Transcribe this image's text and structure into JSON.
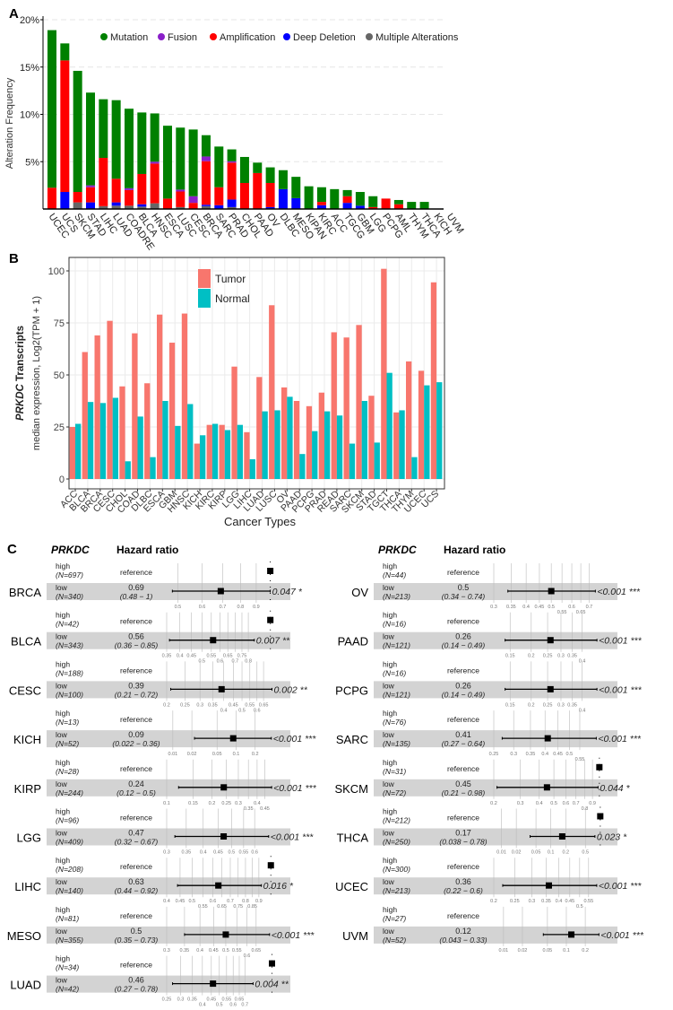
{
  "colors": {
    "mutation": "#008000",
    "fusion": "#8a1fc9",
    "amplification": "#ff0000",
    "deep_deletion": "#0000ff",
    "multiple": "#666666",
    "tumor": "#f8766d",
    "normal": "#00bfc4",
    "band": "#d3d3d3"
  },
  "chart_data": [
    {
      "panel": "A",
      "type": "bar",
      "stacked": true,
      "ylabel": "Alteration Frequency",
      "yticks": [
        "5%",
        "10%",
        "15%",
        "20%"
      ],
      "ylim": [
        0,
        20
      ],
      "unit": "%",
      "grid": true,
      "legend_placement": "top",
      "categories": [
        "UCEC",
        "UCS",
        "SKCM",
        "STAD",
        "LIHC",
        "LUAD",
        "COADRE",
        "BLCA",
        "HNSC",
        "ESCA",
        "LUSC",
        "CESC",
        "BRCA",
        "SARC",
        "PRAD",
        "CHOL",
        "PAAD",
        "OV",
        "DLBC",
        "MESO",
        "KIPAN",
        "KIRC",
        "ACC",
        "TGCG",
        "GBM",
        "LGG",
        "PCPG",
        "AML",
        "THYM",
        "THCA",
        "KICH",
        "UVM"
      ],
      "series": [
        {
          "name": "Multiple Alterations",
          "key": "multiple",
          "values": [
            0,
            0,
            0.7,
            0,
            0.3,
            0.35,
            0.35,
            0.25,
            0.6,
            0,
            0.2,
            0,
            0.3,
            0,
            0.2,
            0,
            0,
            0,
            0,
            0,
            0,
            0,
            0,
            0,
            0,
            0,
            0,
            0,
            0,
            0,
            0,
            0
          ]
        },
        {
          "name": "Deep Deletion",
          "key": "deep_deletion",
          "values": [
            0,
            1.8,
            0,
            0.7,
            0,
            0.35,
            0,
            0.25,
            0,
            0,
            0,
            0,
            0.15,
            0.4,
            0.8,
            0,
            0,
            0.2,
            2.1,
            1.15,
            0,
            0.4,
            0,
            0.65,
            0.35,
            0,
            0,
            0,
            0,
            0,
            0,
            0
          ]
        },
        {
          "name": "Amplification",
          "key": "amplification",
          "values": [
            2.25,
            13.9,
            1.1,
            1.6,
            5.1,
            2.5,
            1.65,
            3.2,
            4.2,
            1.1,
            1.65,
            0.65,
            4.6,
            1.9,
            3.9,
            2.75,
            3.8,
            2.55,
            0,
            0,
            0,
            0.35,
            0,
            0.7,
            0,
            0.2,
            1.1,
            0.5,
            0,
            0,
            0,
            0
          ]
        },
        {
          "name": "Fusion",
          "key": "fusion",
          "values": [
            0,
            0,
            0,
            0.2,
            0,
            0,
            0.2,
            0,
            0.2,
            0,
            0.2,
            0.7,
            0.5,
            0,
            0.15,
            0,
            0,
            0,
            0,
            0,
            0,
            0,
            0,
            0,
            0,
            0,
            0,
            0,
            0,
            0,
            0,
            0
          ]
        },
        {
          "name": "Mutation",
          "key": "mutation",
          "values": [
            16.65,
            1.8,
            12.8,
            9.8,
            6.2,
            8.3,
            8.4,
            6.5,
            5.1,
            7.7,
            6.55,
            7.05,
            2.25,
            4.3,
            1.25,
            2.75,
            1.1,
            1.65,
            2.0,
            2.25,
            2.4,
            1.55,
            2.1,
            0.65,
            1.45,
            1.15,
            0,
            0.45,
            0.75,
            0.75,
            0,
            0
          ]
        }
      ],
      "legend_order": [
        "Mutation",
        "Fusion",
        "Amplification",
        "Deep Deletion",
        "Multiple Alterations"
      ]
    },
    {
      "panel": "B",
      "type": "bar",
      "grouped": true,
      "ylabel_gene": "PRKDC",
      "ylabel_suffix": " Transcripts",
      "ylabel2": "median expression, Log2(TPM + 1)",
      "xlabel": "Cancer Types",
      "ylim": [
        0,
        105
      ],
      "yticks": [
        0,
        25,
        50,
        75,
        100
      ],
      "grid": true,
      "legend_placement": "top-center",
      "categories": [
        "ACC",
        "BLCA",
        "BRCA",
        "CESC",
        "CHOL",
        "COAD",
        "DLBC",
        "ESCA",
        "GBM",
        "HNSC",
        "KICH",
        "KIRC",
        "KIRP",
        "LGG",
        "LIHC",
        "LUAD",
        "LUSC",
        "OV",
        "PAAD",
        "PCPG",
        "PRAD",
        "READ",
        "SARC",
        "SKCM",
        "STAD",
        "TGCT",
        "THCA",
        "THYM",
        "UCEC",
        "UCS"
      ],
      "series": [
        {
          "name": "Tumor",
          "values": [
            25,
            61,
            69,
            76,
            44.5,
            70,
            46,
            79,
            65.5,
            79.5,
            17,
            26,
            26,
            54,
            22.5,
            49,
            83.5,
            44,
            37.5,
            35,
            41.5,
            70.5,
            68,
            74,
            40,
            101,
            32,
            56.5,
            52,
            94.5
          ]
        },
        {
          "name": "Normal",
          "values": [
            26.5,
            37,
            36.5,
            39,
            8.5,
            30,
            10.5,
            37.5,
            25.5,
            36,
            21,
            26.5,
            23.5,
            26,
            9.5,
            32.5,
            33,
            39.5,
            12,
            23,
            32.5,
            30.5,
            17,
            37.5,
            17.5,
            51,
            33,
            10.5,
            45,
            46.5
          ]
        }
      ]
    },
    {
      "panel": "C",
      "type": "forest",
      "scale": "log",
      "header_gene": "PRKDC",
      "header_hr": "Hazard ratio",
      "high_label": "high",
      "low_label": "low",
      "reference_label": "reference",
      "columns": [
        [
          {
            "cancer": "BRCA",
            "n_high": "(N=697)",
            "n_low": "(N=340)",
            "hr": 0.69,
            "hr_text": "0.69",
            "ci": [
              0.48,
              1
            ],
            "ci_text": "(0.48 − 1)",
            "p": "0.047 *",
            "xlim": [
              0.46,
              1.03
            ],
            "ticks": [
              0.5,
              0.6,
              0.7,
              0.8,
              0.9
            ]
          },
          {
            "cancer": "BLCA",
            "n_high": "(N=42)",
            "n_low": "(N=343)",
            "hr": 0.56,
            "hr_text": "0.56",
            "ci": [
              0.36,
              0.85
            ],
            "ci_text": "(0.36 − 0.85)",
            "p": "0.007 **",
            "xlim": [
              0.35,
              1.04
            ],
            "ticks": [
              0.35,
              0.4,
              0.45,
              0.5,
              0.55,
              0.6,
              0.65,
              0.7,
              0.75,
              0.8
            ]
          },
          {
            "cancer": "CESC",
            "n_high": "(N=188)",
            "n_low": "(N=100)",
            "hr": 0.39,
            "hr_text": "0.39",
            "ci": [
              0.21,
              0.72
            ],
            "ci_text": "(0.21 − 0.72)",
            "p": "0.002 **",
            "xlim": [
              0.2,
              0.74
            ],
            "ticks": [
              0.2,
              0.25,
              0.3,
              0.35,
              0.4,
              0.45,
              0.5,
              0.55,
              0.6,
              0.65
            ]
          },
          {
            "cancer": "KICH",
            "n_high": "(N=13)",
            "n_low": "(N=52)",
            "hr": 0.09,
            "hr_text": "0.09",
            "ci": [
              0.022,
              0.36
            ],
            "ci_text": "(0.022 − 0.36)",
            "p": "<0.001 ***",
            "xlim": [
              0.008,
              0.4
            ],
            "ticks": [
              0.01,
              0.02,
              0.05,
              0.1,
              0.2
            ]
          },
          {
            "cancer": "KIRP",
            "n_high": "(N=28)",
            "n_low": "(N=244)",
            "hr": 0.24,
            "hr_text": "0.24",
            "ci": [
              0.12,
              0.5
            ],
            "ci_text": "(0.12 − 0.5)",
            "p": "<0.001 ***",
            "xlim": [
              0.1,
              0.52
            ],
            "ticks": [
              0.1,
              0.15,
              0.2,
              0.25,
              0.3,
              0.35,
              0.4,
              0.45
            ]
          },
          {
            "cancer": "LGG",
            "n_high": "(N=96)",
            "n_low": "(N=409)",
            "hr": 0.47,
            "hr_text": "0.47",
            "ci": [
              0.32,
              0.67
            ],
            "ci_text": "(0.32 − 0.67)",
            "p": "<0.001 ***",
            "xlim": [
              0.3,
              0.7
            ],
            "ticks": [
              0.3,
              0.35,
              0.4,
              0.45,
              0.5,
              0.55,
              0.6
            ]
          },
          {
            "cancer": "LIHC",
            "n_high": "(N=208)",
            "n_low": "(N=140)",
            "hr": 0.63,
            "hr_text": "0.63",
            "ci": [
              0.44,
              0.92
            ],
            "ci_text": "(0.44 − 0.92)",
            "p": "0.016 *",
            "xlim": [
              0.4,
              1.03
            ],
            "ticks": [
              0.4,
              0.45,
              0.5,
              0.55,
              0.6,
              0.65,
              0.7,
              0.75,
              0.8,
              0.85,
              0.9
            ]
          },
          {
            "cancer": "MESO",
            "n_high": "(N=81)",
            "n_low": "(N=355)",
            "hr": 0.5,
            "hr_text": "0.5",
            "ci": [
              0.35,
              0.73
            ],
            "ci_text": "(0.35 − 0.73)",
            "p": "<0.001 ***",
            "xlim": [
              0.3,
              0.76
            ],
            "ticks": [
              0.3,
              0.35,
              0.4,
              0.45,
              0.5,
              0.55,
              0.6,
              0.65
            ]
          },
          {
            "cancer": "LUAD",
            "n_high": "(N=34)",
            "n_low": "(N=42)",
            "hr": 0.46,
            "hr_text": "0.46",
            "ci": [
              0.27,
              0.78
            ],
            "ci_text": "(0.27 − 0.78)",
            "p": "0.004 **",
            "xlim": [
              0.25,
              1.03
            ],
            "ticks": [
              0.25,
              0.3,
              0.35,
              0.4,
              0.45,
              0.5,
              0.55,
              0.6,
              0.65,
              0.7
            ]
          }
        ],
        [
          {
            "cancer": "OV",
            "n_high": "(N=44)",
            "n_low": "(N=213)",
            "hr": 0.5,
            "hr_text": "0.5",
            "ci": [
              0.34,
              0.74
            ],
            "ci_text": "(0.34 − 0.74)",
            "p": "<0.001 ***",
            "xlim": [
              0.3,
              0.78
            ],
            "ticks": [
              0.3,
              0.35,
              0.4,
              0.45,
              0.5,
              0.55,
              0.6,
              0.65,
              0.7
            ]
          },
          {
            "cancer": "PAAD",
            "n_high": "(N=16)",
            "n_low": "(N=121)",
            "hr": 0.26,
            "hr_text": "0.26",
            "ci": [
              0.14,
              0.49
            ],
            "ci_text": "(0.14 − 0.49)",
            "p": "<0.001 ***",
            "xlim": [
              0.12,
              0.52
            ],
            "ticks": [
              0.15,
              0.2,
              0.25,
              0.3,
              0.35,
              0.4
            ]
          },
          {
            "cancer": "PCPG",
            "n_high": "(N=16)",
            "n_low": "(N=121)",
            "hr": 0.26,
            "hr_text": "0.26",
            "ci": [
              0.14,
              0.49
            ],
            "ci_text": "(0.14 − 0.49)",
            "p": "<0.001 ***",
            "xlim": [
              0.12,
              0.52
            ],
            "ticks": [
              0.15,
              0.2,
              0.25,
              0.3,
              0.35,
              0.4
            ]
          },
          {
            "cancer": "SARC",
            "n_high": "(N=76)",
            "n_low": "(N=135)",
            "hr": 0.41,
            "hr_text": "0.41",
            "ci": [
              0.27,
              0.64
            ],
            "ci_text": "(0.27 − 0.64)",
            "p": "<0.001 ***",
            "xlim": [
              0.25,
              0.67
            ],
            "ticks": [
              0.25,
              0.3,
              0.35,
              0.4,
              0.45,
              0.5,
              0.55
            ]
          },
          {
            "cancer": "SKCM",
            "n_high": "(N=31)",
            "n_low": "(N=72)",
            "hr": 0.45,
            "hr_text": "0.45",
            "ci": [
              0.21,
              0.98
            ],
            "ci_text": "(0.21 − 0.98)",
            "p": "0.044 *",
            "xlim": [
              0.2,
              1.03
            ],
            "ticks": [
              0.2,
              0.3,
              0.4,
              0.5,
              0.6,
              0.7,
              0.8,
              0.9
            ]
          },
          {
            "cancer": "THCA",
            "n_high": "(N=212)",
            "n_low": "(N=250)",
            "hr": 0.17,
            "hr_text": "0.17",
            "ci": [
              0.038,
              0.78
            ],
            "ci_text": "(0.038 − 0.78)",
            "p": "0.023 *",
            "xlim": [
              0.007,
              1.05
            ],
            "ticks": [
              0.01,
              0.02,
              0.05,
              0.1,
              0.2,
              0.5
            ]
          },
          {
            "cancer": "UCEC",
            "n_high": "(N=300)",
            "n_low": "(N=213)",
            "hr": 0.36,
            "hr_text": "0.36",
            "ci": [
              0.22,
              0.6
            ],
            "ci_text": "(0.22 − 0.6)",
            "p": "<0.001 ***",
            "xlim": [
              0.2,
              0.63
            ],
            "ticks": [
              0.2,
              0.25,
              0.3,
              0.35,
              0.4,
              0.45,
              0.5,
              0.55
            ]
          },
          {
            "cancer": "UVM",
            "n_high": "(N=27)",
            "n_low": "(N=52)",
            "hr": 0.12,
            "hr_text": "0.12",
            "ci": [
              0.043,
              0.33
            ],
            "ci_text": "(0.043 − 0.33)",
            "p": "<0.001 ***",
            "xlim": [
              0.007,
              0.36
            ],
            "ticks": [
              0.01,
              0.02,
              0.05,
              0.1,
              0.2
            ]
          }
        ]
      ]
    }
  ],
  "panel_labels": [
    "A",
    "B",
    "C"
  ]
}
